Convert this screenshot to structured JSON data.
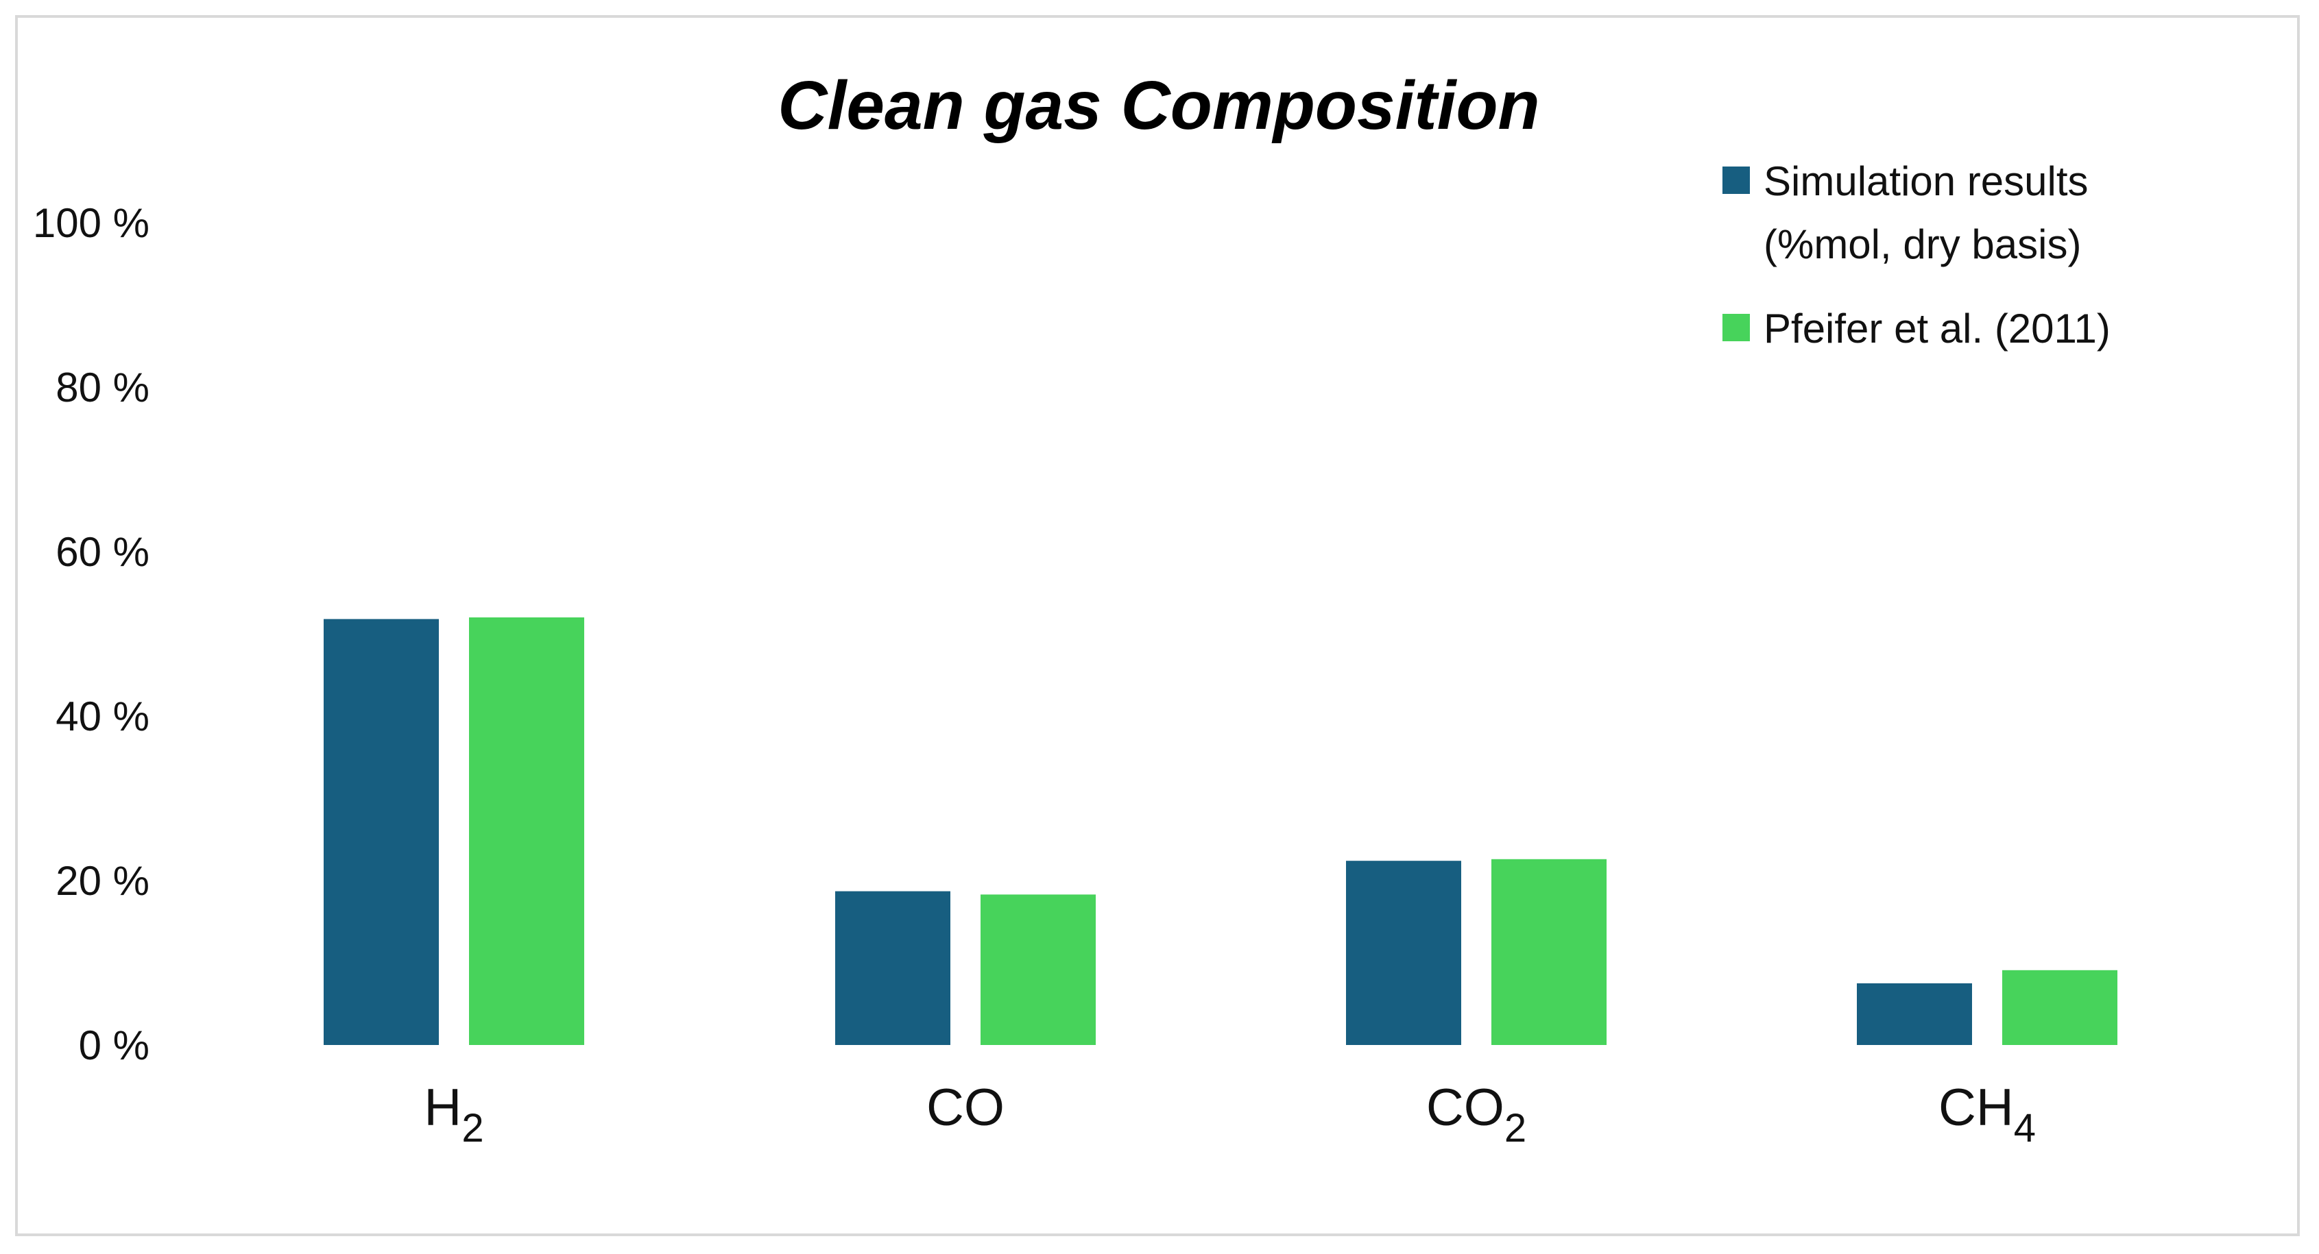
{
  "chart_data": {
    "type": "bar",
    "title": "Clean gas Composition",
    "xlabel": "",
    "ylabel": "",
    "categories": [
      {
        "base": "H",
        "sub": "2"
      },
      {
        "base": "CO",
        "sub": ""
      },
      {
        "base": "CO",
        "sub": "2"
      },
      {
        "base": "CH",
        "sub": "4"
      }
    ],
    "series": [
      {
        "name_lines": [
          "Simulation results",
          "(%mol, dry basis)"
        ],
        "color": "#175e80",
        "values": [
          51.8,
          18.7,
          22.4,
          7.5
        ]
      },
      {
        "name_lines": [
          "Pfeifer et al. (2011)"
        ],
        "color": "#47d35b",
        "values": [
          52.0,
          18.3,
          22.6,
          9.1
        ]
      }
    ],
    "yticks": [
      "0 %",
      "20 %",
      "40 %",
      "60 %",
      "80 %",
      "100 %"
    ],
    "ylim": [
      0,
      100
    ],
    "grid": false,
    "legend_position": "top-right"
  }
}
